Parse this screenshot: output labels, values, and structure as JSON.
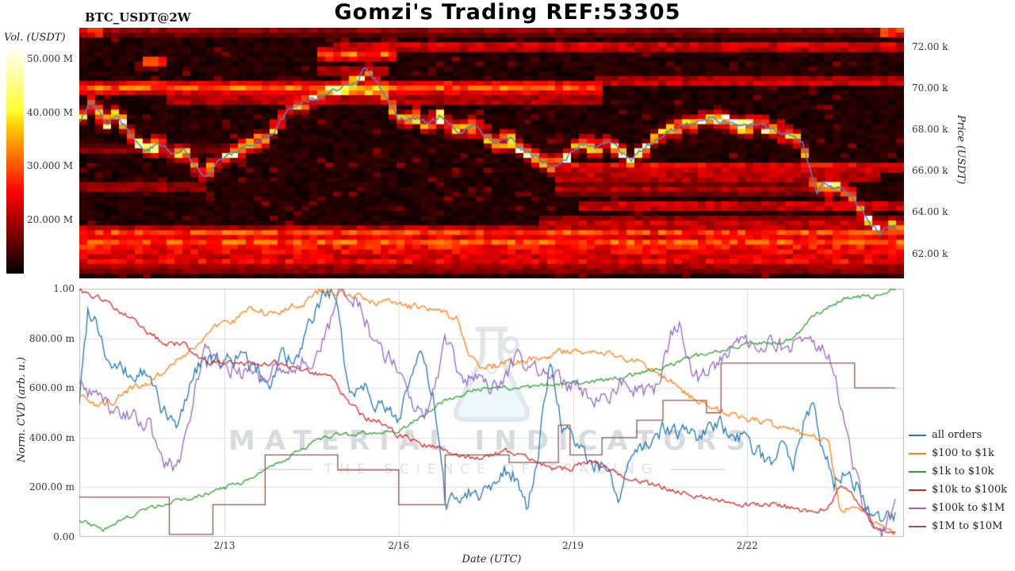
{
  "header": {
    "title": "Gomzi's Trading REF:53305",
    "symbol_label": "BTC_USDT@2W"
  },
  "chart_data": [
    {
      "type": "heatmap",
      "description": "Volume-at-price heatmap with BTC price line overlay",
      "colorbar": {
        "label": "Vol. (USDT)",
        "colormap": "hot",
        "vmin_musdt": 10,
        "vmax_musdt": 52.5,
        "ticks": [
          {
            "label": "50.000 M",
            "value": 50
          },
          {
            "label": "40.000 M",
            "value": 40
          },
          {
            "label": "30.000 M",
            "value": 30
          },
          {
            "label": "20.000 M",
            "value": 20
          }
        ]
      },
      "price_axis": {
        "label": "Price (USDT)",
        "range_kusdt": [
          60.8,
          72.9
        ],
        "ticks": [
          {
            "label": "72.00 k",
            "value": 72
          },
          {
            "label": "70.00 k",
            "value": 70
          },
          {
            "label": "68.00 k",
            "value": 68
          },
          {
            "label": "66.00 k",
            "value": 66
          },
          {
            "label": "64.00 k",
            "value": 64
          },
          {
            "label": "62.00 k",
            "value": 62
          }
        ]
      },
      "x_range_days": [
        0,
        14.2
      ],
      "volume_bands": [
        {
          "price": 72.8,
          "intensity": 0.22,
          "start": 0,
          "end": 1
        },
        {
          "price": 72.7,
          "intensity": 0.45,
          "start": 0,
          "end": 0.02
        },
        {
          "price": 72.7,
          "intensity": 0.5,
          "start": 0.965,
          "end": 1
        },
        {
          "price": 72.0,
          "intensity": 0.35,
          "start": 0.3,
          "end": 1
        },
        {
          "price": 71.6,
          "intensity": 0.5,
          "start": 0.28,
          "end": 0.38
        },
        {
          "price": 71.2,
          "intensity": 0.55,
          "start": 0.07,
          "end": 0.1
        },
        {
          "price": 70.8,
          "intensity": 0.3,
          "start": 0.28,
          "end": 0.37
        },
        {
          "price": 70.3,
          "intensity": 0.32,
          "start": 0.62,
          "end": 1
        },
        {
          "price": 70.0,
          "intensity": 0.5,
          "start": 0,
          "end": 0.63,
          "width": 0.3
        },
        {
          "price": 69.9,
          "intensity": 0.85,
          "start": 0.29,
          "end": 0.37
        },
        {
          "price": 69.4,
          "intensity": 0.3,
          "start": 0.1,
          "end": 0.63
        },
        {
          "price": 67.0,
          "intensity": 0.2,
          "start": 0,
          "end": 0.2
        },
        {
          "price": 66.2,
          "intensity": 0.38,
          "start": 0.57,
          "end": 1
        },
        {
          "price": 65.7,
          "intensity": 0.32,
          "start": 0.57,
          "end": 0.97
        },
        {
          "price": 65.2,
          "intensity": 0.25,
          "start": 0,
          "end": 0.15
        },
        {
          "price": 65.1,
          "intensity": 0.25,
          "start": 0.57,
          "end": 0.9
        },
        {
          "price": 64.3,
          "intensity": 0.35,
          "start": 0.6,
          "end": 1
        },
        {
          "price": 63.5,
          "intensity": 0.3,
          "start": 0.55,
          "end": 1
        },
        {
          "price": 63.0,
          "intensity": 0.45,
          "start": 0,
          "end": 1
        },
        {
          "price": 62.5,
          "intensity": 0.5,
          "start": 0,
          "end": 1,
          "width": 0.35
        },
        {
          "price": 62.1,
          "intensity": 0.35,
          "start": 0,
          "end": 1
        },
        {
          "price": 61.7,
          "intensity": 0.4,
          "start": 0,
          "end": 1
        },
        {
          "price": 61.3,
          "intensity": 0.25,
          "start": 0,
          "end": 1
        }
      ],
      "price_line": {
        "name": "BTC_USDT price",
        "color": "#4a86c8",
        "x_days": [
          0,
          0.2,
          0.5,
          0.65,
          0.9,
          1.1,
          1.4,
          1.6,
          1.8,
          2.0,
          2.2,
          2.35,
          2.5,
          2.7,
          2.9,
          3.2,
          3.4,
          3.6,
          3.8,
          4.0,
          4.2,
          4.4,
          4.6,
          4.8,
          4.9,
          5.05,
          5.2,
          5.4,
          5.5,
          5.8,
          6.0,
          6.2,
          6.4,
          6.6,
          6.8,
          7.0,
          7.2,
          7.4,
          7.6,
          7.8,
          8.0,
          8.2,
          8.4,
          8.5,
          8.7,
          8.9,
          9.1,
          9.3,
          9.5,
          9.7,
          9.9,
          10.1,
          10.3,
          10.5,
          10.7,
          10.9,
          11.1,
          11.3,
          11.5,
          11.7,
          11.9,
          12.1,
          12.3,
          12.45,
          12.6,
          12.7,
          12.8,
          12.9,
          13.1,
          13.3,
          13.45,
          13.55,
          13.7,
          13.8,
          13.95,
          14.1
        ],
        "y_kusdt": [
          68.4,
          69.3,
          68.3,
          68.8,
          67.7,
          67.0,
          67.3,
          66.8,
          67.0,
          66.2,
          65.8,
          66.4,
          66.6,
          67.0,
          67.3,
          67.5,
          68.1,
          69.0,
          69.2,
          69.4,
          69.6,
          69.8,
          70.1,
          70.3,
          71.0,
          70.5,
          70.0,
          69.0,
          68.5,
          68.6,
          68.2,
          68.6,
          68.1,
          67.9,
          68.2,
          67.7,
          67.3,
          67.5,
          67.1,
          66.8,
          66.4,
          66.2,
          66.6,
          67.0,
          67.3,
          67.1,
          67.3,
          67.0,
          66.4,
          67.0,
          67.5,
          67.9,
          68.1,
          68.2,
          68.4,
          68.6,
          68.4,
          68.2,
          68.1,
          68.2,
          68.1,
          67.9,
          67.7,
          67.3,
          65.8,
          64.9,
          65.4,
          65.1,
          65.2,
          64.7,
          64.1,
          63.8,
          63.2,
          63.0,
          63.4,
          63.2
        ]
      }
    },
    {
      "type": "line",
      "xlabel": "Date (UTC)",
      "ylabel": "Norm. CVD (arb. u.)",
      "ylim": [
        0,
        1
      ],
      "grid": true,
      "legend_position": "right",
      "watermark": {
        "line1": "MATERIAL INDICATORS",
        "line2": "THE SCIENCE OF TRADING"
      },
      "x_ticks": [
        {
          "label": "2/13",
          "day": 2.5
        },
        {
          "label": "2/16",
          "day": 5.5
        },
        {
          "label": "2/19",
          "day": 8.5
        },
        {
          "label": "2/22",
          "day": 11.5
        }
      ],
      "y_ticks": [
        {
          "label": "0.00",
          "value": 0
        },
        {
          "label": "200.00 m",
          "value": 0.2
        },
        {
          "label": "400.00 m",
          "value": 0.4
        },
        {
          "label": "600.00 m",
          "value": 0.6
        },
        {
          "label": "800.00 m",
          "value": 0.8
        },
        {
          "label": "1.00",
          "value": 1.0
        }
      ],
      "series": [
        {
          "name": "all orders",
          "color": "#1f77b4",
          "noise": 0.06,
          "x": [
            0,
            0.15,
            0.3,
            0.5,
            0.7,
            0.9,
            1.1,
            1.3,
            1.5,
            1.7,
            1.9,
            2.1,
            2.3,
            2.5,
            2.7,
            2.9,
            3.1,
            3.3,
            3.5,
            3.7,
            3.9,
            4.1,
            4.25,
            4.4,
            4.55,
            4.7,
            4.9,
            5.1,
            5.3,
            5.5,
            5.7,
            5.9,
            6.1,
            6.3,
            6.5,
            6.7,
            6.9,
            7.1,
            7.3,
            7.5,
            7.7,
            7.9,
            8.1,
            8.3,
            8.5,
            8.7,
            8.9,
            9.1,
            9.3,
            9.5,
            9.7,
            9.9,
            10.1,
            10.4,
            10.7,
            11.0,
            11.3,
            11.6,
            11.9,
            12.1,
            12.3,
            12.5,
            12.65,
            12.8,
            13.0,
            13.2,
            13.4,
            13.6,
            13.8,
            14.05
          ],
          "y": [
            0.55,
            0.92,
            0.88,
            0.7,
            0.67,
            0.64,
            0.66,
            0.6,
            0.48,
            0.44,
            0.62,
            0.72,
            0.7,
            0.71,
            0.73,
            0.7,
            0.66,
            0.62,
            0.75,
            0.68,
            0.8,
            0.92,
            1.0,
            0.97,
            0.72,
            0.58,
            0.62,
            0.55,
            0.5,
            0.48,
            0.65,
            0.73,
            0.55,
            0.14,
            0.16,
            0.19,
            0.17,
            0.22,
            0.28,
            0.25,
            0.1,
            0.33,
            0.72,
            0.45,
            0.38,
            0.33,
            0.3,
            0.28,
            0.12,
            0.32,
            0.35,
            0.42,
            0.44,
            0.42,
            0.4,
            0.45,
            0.42,
            0.35,
            0.3,
            0.42,
            0.3,
            0.48,
            0.55,
            0.35,
            0.22,
            0.28,
            0.2,
            0.12,
            0.06,
            0.08
          ]
        },
        {
          "name": "$100 to $1k",
          "color": "#ff7f0e",
          "noise": 0.025,
          "x": [
            0,
            0.3,
            0.6,
            0.9,
            1.2,
            1.5,
            1.8,
            2.1,
            2.4,
            2.7,
            3.0,
            3.3,
            3.6,
            3.9,
            4.2,
            4.5,
            4.8,
            5.1,
            5.4,
            5.7,
            6.0,
            6.3,
            6.5,
            6.7,
            7.0,
            7.3,
            7.6,
            7.9,
            8.2,
            8.5,
            8.8,
            9.1,
            9.4,
            9.7,
            10.0,
            10.3,
            10.6,
            10.9,
            11.2,
            11.5,
            11.8,
            12.1,
            12.4,
            12.7,
            12.9,
            13.1,
            13.3,
            13.5,
            13.7,
            14.05
          ],
          "y": [
            0.57,
            0.52,
            0.55,
            0.6,
            0.62,
            0.68,
            0.74,
            0.78,
            0.86,
            0.88,
            0.92,
            0.9,
            0.93,
            0.95,
            1.0,
            0.98,
            0.96,
            0.95,
            0.94,
            0.93,
            0.92,
            0.9,
            0.88,
            0.72,
            0.68,
            0.7,
            0.71,
            0.72,
            0.74,
            0.75,
            0.75,
            0.74,
            0.72,
            0.7,
            0.66,
            0.6,
            0.55,
            0.52,
            0.5,
            0.48,
            0.46,
            0.44,
            0.42,
            0.4,
            0.38,
            0.1,
            0.13,
            0.1,
            0.06,
            0.02
          ]
        },
        {
          "name": "$1k to $10k",
          "color": "#2ca02c",
          "noise": 0.015,
          "x": [
            0,
            0.4,
            0.8,
            1.2,
            1.6,
            2.0,
            2.4,
            2.8,
            3.2,
            3.6,
            4.0,
            4.2,
            4.5,
            5.0,
            5.5,
            5.9,
            6.2,
            6.5,
            7.0,
            7.5,
            8.0,
            8.5,
            9.0,
            9.5,
            10.0,
            10.5,
            11.0,
            11.5,
            12.0,
            12.3,
            12.6,
            12.9,
            13.2,
            13.5,
            13.8,
            14.05
          ],
          "y": [
            0.07,
            0.03,
            0.08,
            0.11,
            0.14,
            0.16,
            0.19,
            0.22,
            0.27,
            0.32,
            0.38,
            0.4,
            0.41,
            0.42,
            0.43,
            0.48,
            0.54,
            0.57,
            0.6,
            0.6,
            0.61,
            0.62,
            0.63,
            0.65,
            0.68,
            0.72,
            0.75,
            0.78,
            0.78,
            0.8,
            0.88,
            0.93,
            0.96,
            0.97,
            0.97,
            1.0
          ]
        },
        {
          "name": "$10k to $100k",
          "color": "#d62728",
          "noise": 0.02,
          "x": [
            0,
            0.3,
            0.6,
            0.9,
            1.2,
            1.5,
            1.8,
            2.0,
            2.2,
            2.5,
            2.8,
            3.1,
            3.4,
            3.7,
            4.0,
            4.3,
            4.6,
            4.9,
            5.2,
            5.5,
            5.8,
            6.1,
            6.4,
            6.7,
            7.0,
            7.3,
            7.6,
            7.9,
            8.2,
            8.5,
            8.8,
            9.1,
            9.4,
            9.7,
            10.0,
            10.4,
            10.8,
            11.2,
            11.6,
            12.0,
            12.4,
            12.7,
            12.9,
            13.1,
            13.3,
            13.5,
            13.7,
            14.05
          ],
          "y": [
            0.99,
            0.97,
            0.92,
            0.88,
            0.82,
            0.78,
            0.78,
            0.74,
            0.7,
            0.71,
            0.7,
            0.69,
            0.7,
            0.68,
            0.66,
            0.65,
            0.56,
            0.48,
            0.46,
            0.41,
            0.38,
            0.36,
            0.34,
            0.32,
            0.32,
            0.35,
            0.33,
            0.29,
            0.27,
            0.28,
            0.3,
            0.28,
            0.24,
            0.22,
            0.2,
            0.18,
            0.16,
            0.14,
            0.13,
            0.13,
            0.11,
            0.1,
            0.12,
            0.2,
            0.18,
            0.1,
            0.04,
            0.01
          ]
        },
        {
          "name": "$100k to $1M",
          "color": "#9467bd",
          "noise": 0.06,
          "x": [
            0,
            0.3,
            0.6,
            0.9,
            1.2,
            1.5,
            1.7,
            2.0,
            2.2,
            2.5,
            2.8,
            3.1,
            3.4,
            3.7,
            4.0,
            4.3,
            4.5,
            4.7,
            4.9,
            5.1,
            5.4,
            5.7,
            6.0,
            6.3,
            6.6,
            6.9,
            7.2,
            7.5,
            7.8,
            8.1,
            8.4,
            8.7,
            9.0,
            9.3,
            9.6,
            9.9,
            10.2,
            10.35,
            10.6,
            10.9,
            11.2,
            11.5,
            11.8,
            12.1,
            12.4,
            12.7,
            12.9,
            13.1,
            13.3,
            13.5,
            13.7,
            13.85,
            14.05
          ],
          "y": [
            0.62,
            0.55,
            0.52,
            0.5,
            0.45,
            0.3,
            0.28,
            0.6,
            0.78,
            0.7,
            0.66,
            0.64,
            0.68,
            0.7,
            0.72,
            0.85,
            1.0,
            0.97,
            0.9,
            0.75,
            0.72,
            0.55,
            0.5,
            0.78,
            0.65,
            0.62,
            0.6,
            0.72,
            0.68,
            0.66,
            0.62,
            0.58,
            0.55,
            0.62,
            0.6,
            0.56,
            0.83,
            0.85,
            0.63,
            0.68,
            0.75,
            0.78,
            0.78,
            0.76,
            0.78,
            0.78,
            0.72,
            0.55,
            0.3,
            0.12,
            0.04,
            0.02,
            0.12
          ]
        },
        {
          "name": "$1M to $10M",
          "color": "#8c564b",
          "noise": 0,
          "step": true,
          "x": [
            0,
            1.55,
            2.3,
            3.2,
            4.45,
            5.5,
            6.3,
            7.4,
            8.25,
            8.45,
            9.0,
            9.6,
            10.05,
            10.8,
            11.05,
            13.35,
            14.05
          ],
          "y": [
            0.16,
            0.01,
            0.13,
            0.33,
            0.27,
            0.13,
            0.33,
            0.3,
            0.45,
            0.33,
            0.4,
            0.47,
            0.55,
            0.5,
            0.7,
            0.6,
            0.6
          ]
        }
      ]
    }
  ]
}
